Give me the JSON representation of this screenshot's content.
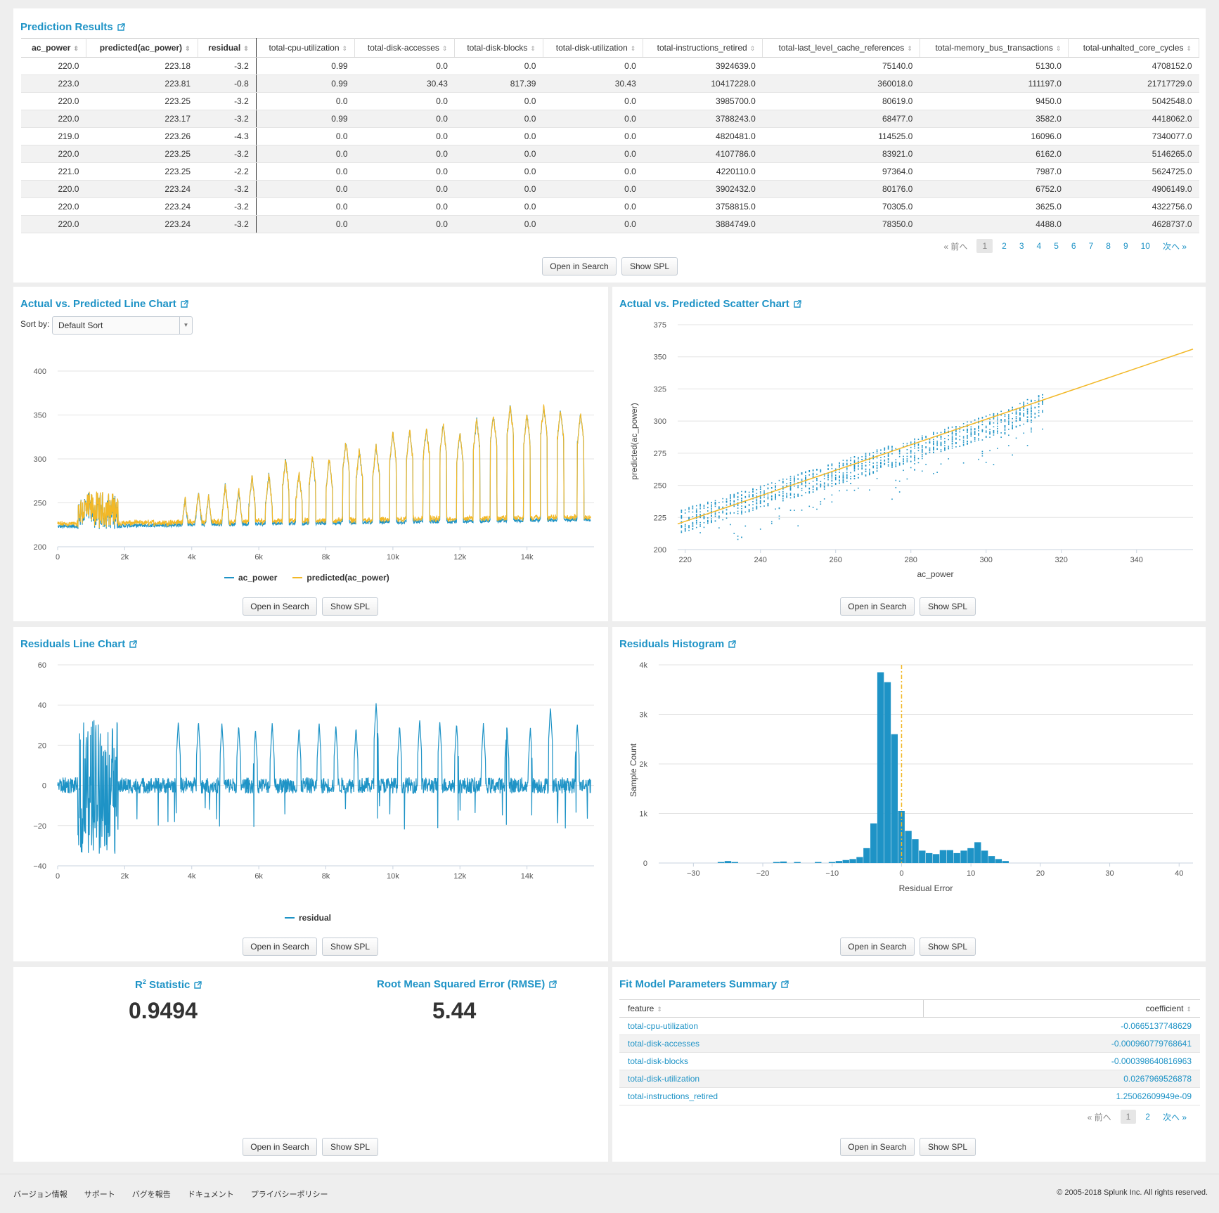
{
  "prediction_results": {
    "title": "Prediction Results",
    "columns": [
      "ac_power",
      "predicted(ac_power)",
      "residual",
      "total-cpu-utilization",
      "total-disk-accesses",
      "total-disk-blocks",
      "total-disk-utilization",
      "total-instructions_retired",
      "total-last_level_cache_references",
      "total-memory_bus_transactions",
      "total-unhalted_core_cycles"
    ],
    "rows": [
      [
        "220.0",
        "223.18",
        "-3.2",
        "0.99",
        "0.0",
        "0.0",
        "0.0",
        "3924639.0",
        "75140.0",
        "5130.0",
        "4708152.0"
      ],
      [
        "223.0",
        "223.81",
        "-0.8",
        "0.99",
        "30.43",
        "817.39",
        "30.43",
        "10417228.0",
        "360018.0",
        "111197.0",
        "21717729.0"
      ],
      [
        "220.0",
        "223.25",
        "-3.2",
        "0.0",
        "0.0",
        "0.0",
        "0.0",
        "3985700.0",
        "80619.0",
        "9450.0",
        "5042548.0"
      ],
      [
        "220.0",
        "223.17",
        "-3.2",
        "0.99",
        "0.0",
        "0.0",
        "0.0",
        "3788243.0",
        "68477.0",
        "3582.0",
        "4418062.0"
      ],
      [
        "219.0",
        "223.26",
        "-4.3",
        "0.0",
        "0.0",
        "0.0",
        "0.0",
        "4820481.0",
        "114525.0",
        "16096.0",
        "7340077.0"
      ],
      [
        "220.0",
        "223.25",
        "-3.2",
        "0.0",
        "0.0",
        "0.0",
        "0.0",
        "4107786.0",
        "83921.0",
        "6162.0",
        "5146265.0"
      ],
      [
        "221.0",
        "223.25",
        "-2.2",
        "0.0",
        "0.0",
        "0.0",
        "0.0",
        "4220110.0",
        "97364.0",
        "7987.0",
        "5624725.0"
      ],
      [
        "220.0",
        "223.24",
        "-3.2",
        "0.0",
        "0.0",
        "0.0",
        "0.0",
        "3902432.0",
        "80176.0",
        "6752.0",
        "4906149.0"
      ],
      [
        "220.0",
        "223.24",
        "-3.2",
        "0.0",
        "0.0",
        "0.0",
        "0.0",
        "3758815.0",
        "70305.0",
        "3625.0",
        "4322756.0"
      ],
      [
        "220.0",
        "223.24",
        "-3.2",
        "0.0",
        "0.0",
        "0.0",
        "0.0",
        "3884749.0",
        "78350.0",
        "4488.0",
        "4628737.0"
      ]
    ],
    "pager": {
      "prev": "« 前へ",
      "pages": [
        "1",
        "2",
        "3",
        "4",
        "5",
        "6",
        "7",
        "8",
        "9",
        "10"
      ],
      "next": "次へ »",
      "current": "1"
    }
  },
  "buttons": {
    "open": "Open in Search",
    "spl": "Show SPL"
  },
  "line_chart": {
    "title": "Actual vs. Predicted Line Chart",
    "sort_label": "Sort by:",
    "sort_value": "Default Sort",
    "legend": [
      "ac_power",
      "predicted(ac_power)"
    ]
  },
  "scatter_chart": {
    "title": "Actual vs. Predicted Scatter Chart"
  },
  "residual_line": {
    "title": "Residuals Line Chart",
    "legend": [
      "residual"
    ]
  },
  "histogram": {
    "title": "Residuals Histogram"
  },
  "r2": {
    "title_main": "R",
    "title_sup": "2",
    "title_rest": " Statistic",
    "value": "0.9494"
  },
  "rmse": {
    "title": "Root Mean Squared Error (RMSE)",
    "value": "5.44"
  },
  "params": {
    "title": "Fit Model Parameters Summary",
    "columns": [
      "feature",
      "coefficient"
    ],
    "rows": [
      [
        "total-cpu-utilization",
        "-0.0665137748629"
      ],
      [
        "total-disk-accesses",
        "-0.000960779768641"
      ],
      [
        "total-disk-blocks",
        "-0.000398640816963"
      ],
      [
        "total-disk-utilization",
        "0.0267969526878"
      ],
      [
        "total-instructions_retired",
        "1.25062609949e-09"
      ]
    ],
    "pager": {
      "prev": "« 前へ",
      "pages": [
        "1",
        "2"
      ],
      "next": "次へ »",
      "current": "1"
    }
  },
  "footer": {
    "links": [
      "バージョン情報",
      "サポート",
      "バグを報告",
      "ドキュメント",
      "プライバシーポリシー"
    ],
    "copyright": "© 2005-2018 Splunk Inc. All rights reserved."
  },
  "colors": {
    "blue": "#1e93c6",
    "orange": "#f2b827"
  },
  "chart_data": [
    {
      "type": "line",
      "title": "Actual vs. Predicted Line Chart",
      "xlabel": "",
      "ylabel": "",
      "xlim": [
        0,
        16000
      ],
      "ylim": [
        200,
        400
      ],
      "x_ticks": [
        "0",
        "2k",
        "4k",
        "6k",
        "8k",
        "10k",
        "12k",
        "14k"
      ],
      "y_ticks": [
        "200",
        "250",
        "300",
        "350",
        "400"
      ],
      "series_names": [
        "ac_power",
        "predicted(ac_power)"
      ],
      "baseline": 223,
      "peaks_x": [
        3800,
        4200,
        4500,
        5000,
        5400,
        5800,
        6300,
        6800,
        7200,
        7600,
        8100,
        8600,
        9000,
        9500,
        10000,
        10500,
        11000,
        11500,
        12000,
        12500,
        13000,
        13500,
        14000,
        14500,
        15000,
        15600
      ],
      "peaks_y": [
        255,
        262,
        258,
        270,
        265,
        280,
        282,
        300,
        285,
        303,
        300,
        320,
        310,
        315,
        330,
        332,
        335,
        340,
        330,
        345,
        350,
        360,
        350,
        360,
        355,
        352
      ],
      "noisy_region_x": [
        600,
        1800
      ],
      "noisy_region_range": [
        220,
        262
      ],
      "grid": true,
      "legend": "bottom"
    },
    {
      "type": "scatter",
      "title": "Actual vs. Predicted Scatter Chart",
      "xlabel": "ac_power",
      "ylabel": "predicted(ac_power)",
      "xlim": [
        218,
        355
      ],
      "ylim": [
        200,
        375
      ],
      "x_ticks": [
        "220",
        "240",
        "260",
        "280",
        "300",
        "320",
        "340"
      ],
      "y_ticks": [
        "200",
        "225",
        "250",
        "275",
        "300",
        "325",
        "350",
        "375"
      ],
      "fit_line": [
        [
          218,
          220
        ],
        [
          355,
          356
        ]
      ],
      "trend": "approximately y = 0.9*x + 25 with spread ±10",
      "grid": true
    },
    {
      "type": "line",
      "title": "Residuals Line Chart",
      "xlim": [
        0,
        16000
      ],
      "ylim": [
        -40,
        60
      ],
      "x_ticks": [
        "0",
        "2k",
        "4k",
        "6k",
        "8k",
        "10k",
        "12k",
        "14k"
      ],
      "y_ticks": [
        "−40",
        "−20",
        "0",
        "20",
        "40",
        "60"
      ],
      "series_names": [
        "residual"
      ],
      "spikes_x": [
        3600,
        4200,
        4900,
        5400,
        5900,
        6400,
        7200,
        7800,
        8300,
        8900,
        9500,
        10200,
        10800,
        11400,
        11900,
        12700,
        13400,
        14100,
        14700,
        15500
      ],
      "spikes_y": [
        32,
        32,
        31,
        30,
        28,
        31,
        29,
        31,
        30,
        29,
        41,
        30,
        33,
        32,
        31,
        31,
        30,
        29,
        39,
        31
      ],
      "noisy_region_x": [
        600,
        1800
      ],
      "noisy_region_range": [
        -34,
        34
      ],
      "grid": true,
      "legend": "bottom"
    },
    {
      "type": "bar",
      "title": "Residuals Histogram",
      "xlabel": "Residual Error",
      "ylabel": "Sample Count",
      "xlim": [
        -35,
        42
      ],
      "ylim": [
        0,
        4000
      ],
      "x_ticks": [
        "−30",
        "−20",
        "−10",
        "0",
        "10",
        "20",
        "30",
        "40"
      ],
      "y_ticks": [
        "0",
        "1k",
        "2k",
        "3k",
        "4k"
      ],
      "bin_width": 1,
      "bins_x": [
        -26,
        -25,
        -24,
        -18,
        -17,
        -15,
        -12,
        -10,
        -9,
        -8,
        -7,
        -6,
        -5,
        -4,
        -3,
        -2,
        -1,
        0,
        1,
        2,
        3,
        4,
        5,
        6,
        7,
        8,
        9,
        10,
        11,
        12,
        13,
        14,
        15
      ],
      "counts": [
        20,
        40,
        20,
        20,
        30,
        20,
        20,
        20,
        40,
        60,
        80,
        120,
        300,
        800,
        3850,
        3650,
        2600,
        1050,
        650,
        480,
        250,
        200,
        180,
        260,
        260,
        200,
        250,
        300,
        420,
        250,
        140,
        80,
        40
      ],
      "mean_line_x": 0,
      "grid": true
    }
  ]
}
